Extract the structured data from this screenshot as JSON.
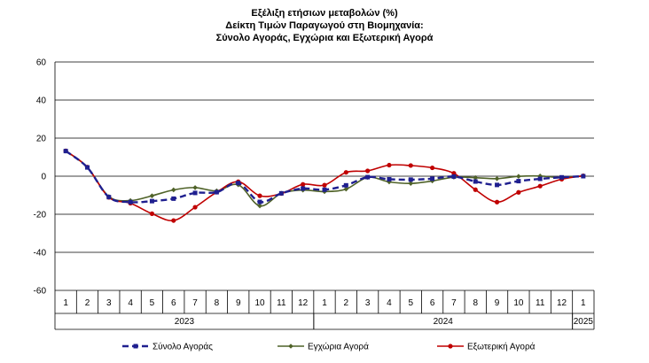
{
  "chart_data": {
    "type": "line",
    "title": [
      "Εξέλιξη ετήσιων μεταβολών (%)",
      "Δείκτη Τιμών Παραγωγού στη Βιομηχανία:",
      "Σύνολο Αγοράς, Εγχώρια και Εξωτερική Αγορά"
    ],
    "ylim": [
      -60,
      60
    ],
    "yticks": [
      60,
      40,
      20,
      0,
      -20,
      -40,
      -60
    ],
    "grid": true,
    "month_labels": [
      "1",
      "2",
      "3",
      "4",
      "5",
      "6",
      "7",
      "8",
      "9",
      "10",
      "11",
      "12",
      "1",
      "2",
      "3",
      "4",
      "5",
      "6",
      "7",
      "8",
      "9",
      "10",
      "11",
      "12",
      "1"
    ],
    "year_groups": [
      {
        "label": "2023",
        "start": 0,
        "end": 11
      },
      {
        "label": "2024",
        "start": 12,
        "end": 23
      },
      {
        "label": "2025",
        "start": 24,
        "end": 24
      }
    ],
    "legend_position": "bottom",
    "series": [
      {
        "name": "Σύνολο Αγοράς",
        "color": "#1f1f8f",
        "style": "dashed-square",
        "values": [
          13.2,
          4.6,
          -11.0,
          -13.6,
          -13.1,
          -11.8,
          -8.8,
          -8.4,
          -3.6,
          -13.5,
          -9.0,
          -6.5,
          -7.1,
          -4.8,
          -0.5,
          -1.6,
          -1.8,
          -1.3,
          -0.2,
          -2.8,
          -4.6,
          -2.6,
          -1.4,
          -0.6,
          0.0
        ]
      },
      {
        "name": "Εγχώρια Αγορά",
        "color": "#4f6228",
        "style": "solid-diamond",
        "values": [
          13.2,
          4.7,
          -10.7,
          -12.8,
          -10.3,
          -7.2,
          -6.0,
          -7.7,
          -4.5,
          -15.6,
          -9.0,
          -7.3,
          -8.1,
          -6.8,
          -0.6,
          -3.0,
          -3.8,
          -2.5,
          -0.5,
          -0.8,
          -1.3,
          -0.1,
          0.1,
          -0.8,
          0.2
        ]
      },
      {
        "name": "Εξωτερική Αγορά",
        "color": "#c00000",
        "style": "solid-circle",
        "values": [
          13.3,
          4.8,
          -11.1,
          -14.2,
          -19.7,
          -23.3,
          -16.3,
          -8.4,
          -2.9,
          -10.3,
          -9.1,
          -4.3,
          -4.7,
          2.0,
          2.8,
          5.8,
          5.6,
          4.4,
          1.5,
          -7.1,
          -13.6,
          -8.5,
          -5.2,
          -1.6,
          0.2
        ]
      }
    ]
  }
}
